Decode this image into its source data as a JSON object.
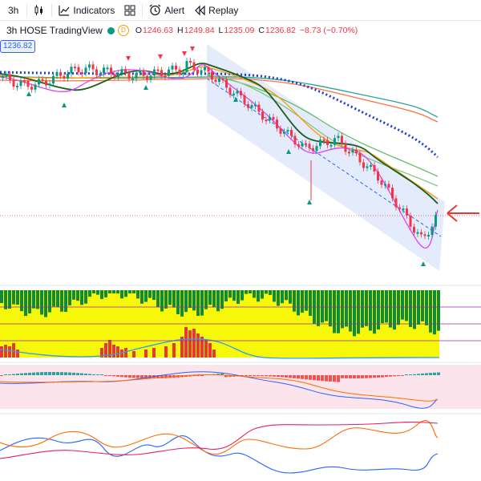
{
  "toolbar": {
    "interval": "3h",
    "indicators_label": "Indicators",
    "alert_label": "Alert",
    "replay_label": "Replay"
  },
  "legend": {
    "symbol_text": "3h  HOSE  TradingView",
    "source_badge": "D",
    "open_key": "O",
    "open": "1246.63",
    "high_key": "H",
    "high": "1249.84",
    "low_key": "L",
    "low": "1235.09",
    "close_key": "C",
    "close": "1236.82",
    "change": "−8.73 (−0.70%)"
  },
  "price_tag": "1236.82",
  "colors": {
    "up": "#089981",
    "down": "#f23645",
    "accent": "#2962ff",
    "arrow": "#e53935"
  },
  "icons": [
    "candles-icon",
    "indicators-icon",
    "layout-grid-icon",
    "alert-icon",
    "replay-icon",
    "red-arrow-icon"
  ]
}
